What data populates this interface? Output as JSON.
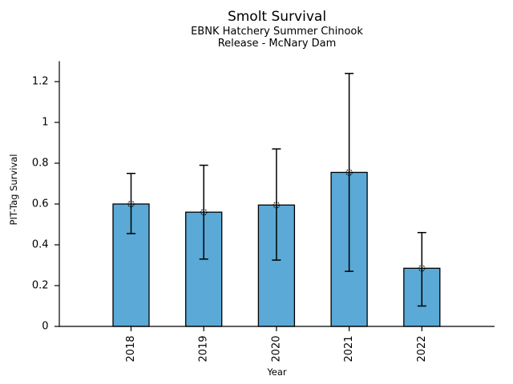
{
  "chart_data": {
    "type": "bar",
    "title": "Smolt Survival",
    "subtitle": [
      "EBNK Hatchery Summer Chinook",
      "Release - McNary Dam"
    ],
    "xlabel": "Year",
    "ylabel": "PIT-Tag Survival",
    "categories": [
      "2018",
      "2019",
      "2020",
      "2021",
      "2022"
    ],
    "values": [
      0.6,
      0.56,
      0.595,
      0.755,
      0.285
    ],
    "error_low": [
      0.455,
      0.33,
      0.325,
      0.27,
      0.1
    ],
    "error_high": [
      0.75,
      0.79,
      0.87,
      1.24,
      0.46
    ],
    "y_ticks": [
      0,
      0.2,
      0.4,
      0.6,
      0.8,
      1,
      1.2
    ],
    "y_tick_labels": [
      "0",
      "0.2",
      "0.4",
      "0.6",
      "0.8",
      "1",
      "1.2"
    ],
    "ylim": [
      0,
      1.3
    ],
    "bar_color": "#5AA9D6",
    "bar_edge_color": "#000000",
    "error_bar_color": "#000000",
    "marker": "open-circle",
    "marker_color": "#000000",
    "grid": false,
    "legend": false,
    "background_color": "#ffffff"
  }
}
